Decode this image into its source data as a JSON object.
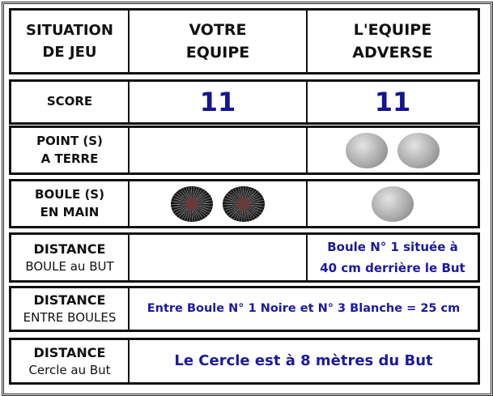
{
  "header": {
    "col1": [
      "SITUATION",
      "DE JEU"
    ],
    "col2": [
      "VOTRE",
      "EQUIPE"
    ],
    "col3": [
      "L'EQUIPE",
      "ADVERSE"
    ]
  },
  "score": {
    "label": "SCORE",
    "votre": "11",
    "adverse": "11"
  },
  "points": {
    "label": [
      "POINT (S)",
      "A TERRE"
    ],
    "votre_count": 0,
    "adverse_count": 2,
    "adverse_ball": "silver-boule-icon"
  },
  "boules": {
    "label": [
      "BOULE (S)",
      "EN MAIN"
    ],
    "votre_count": 2,
    "votre_ball": "black-boule-icon",
    "adverse_count": 1,
    "adverse_ball": "silver-boule-icon"
  },
  "distance_but": {
    "label": [
      "DISTANCE",
      "BOULE au BUT"
    ],
    "adverse": [
      "Boule N° 1 située à",
      "40 cm derrière le But"
    ]
  },
  "distance_boules": {
    "label": [
      "DISTANCE",
      "ENTRE BOULES"
    ],
    "value": "Entre Boule N° 1 Noire et N° 3 Blanche = 25 cm"
  },
  "distance_cercle": {
    "label": [
      "DISTANCE",
      "Cercle au But"
    ],
    "value": "Le Cercle est à 8 mètres du But"
  },
  "colors": {
    "value_text": "#1a1aa0",
    "border": "#111111"
  }
}
